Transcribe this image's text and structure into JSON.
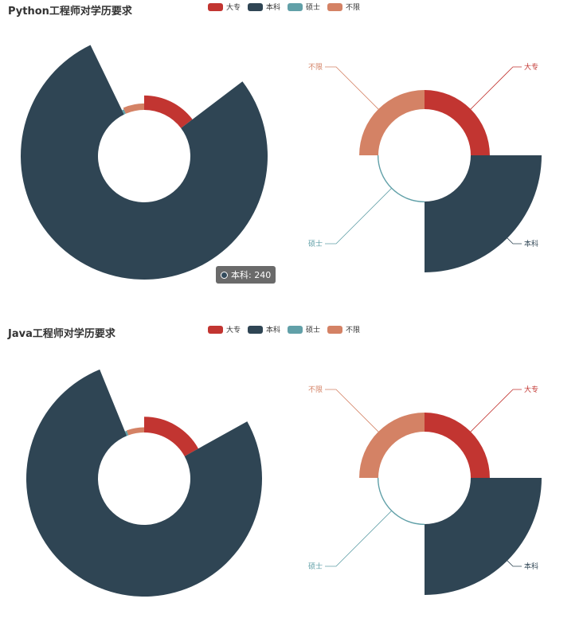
{
  "chart_data": [
    {
      "type": "pie",
      "subtype": "nightingale-rose",
      "title": "Python工程师对学历要求",
      "categories": [
        "大专",
        "本科",
        "硕士",
        "不限"
      ],
      "colors": [
        "#C23531",
        "#2F4554",
        "#61A0A8",
        "#D48265"
      ],
      "left_chart": {
        "values": [
          45,
          240,
          2,
          20
        ],
        "start_angle_deg": 90
      },
      "right_chart": {
        "values": [
          70,
          260,
          0,
          70
        ],
        "start_angle_deg": 90,
        "labels": [
          "大专",
          "本科",
          "硕士",
          "不限"
        ]
      },
      "tooltip": {
        "series": "本科",
        "value": "240"
      }
    },
    {
      "type": "pie",
      "subtype": "nightingale-rose",
      "title": "Java工程师对学历要求",
      "categories": [
        "大专",
        "本科",
        "硕士",
        "不限"
      ],
      "colors": [
        "#C23531",
        "#2F4554",
        "#61A0A8",
        "#D48265"
      ],
      "left_chart": {
        "values": [
          55,
          250,
          2,
          18
        ],
        "start_angle_deg": 90
      },
      "right_chart": {
        "values": [
          70,
          260,
          0,
          70
        ],
        "start_angle_deg": 90,
        "labels": [
          "大专",
          "本科",
          "硕士",
          "不限"
        ]
      }
    }
  ],
  "legend_labels": [
    "大专",
    "本科",
    "硕士",
    "不限"
  ],
  "tooltip_text": "本科: 240"
}
